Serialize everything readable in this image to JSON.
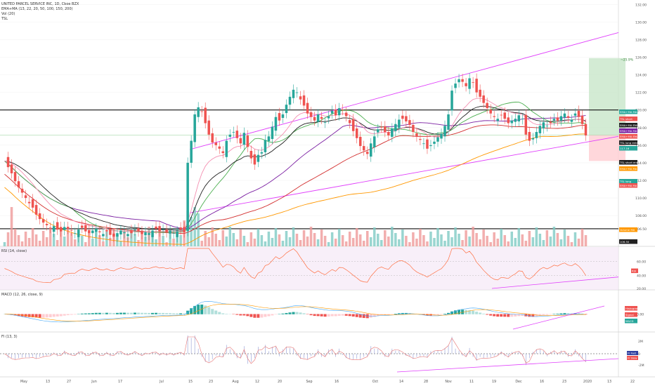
{
  "header": {
    "title": "UNITED PARCEL SERVICE INC, 1D, Cboe BZX",
    "ema_label": "EMA+MA (13, 22, 20, 50, 100, 150, 200)",
    "vol_label": "Vol (20)",
    "tsl_label": "TSL"
  },
  "pane_labels": {
    "rsi": "RSI (14, close)",
    "macd": "MACD (12, 26, close, 9)",
    "fi": "FI (13, 3)"
  },
  "colors": {
    "up": "#26a69a",
    "down": "#ef5350",
    "channel": "#e040fb",
    "ema13": "#f48fb1",
    "ema22": "#212121",
    "ma20": "#4caf50",
    "ma50": "#7b1fa2",
    "ma100": "#d32f2f",
    "ma150": "#ff9800"
  },
  "price_axis": [
    "132.00",
    "130.00",
    "128.00",
    "126.00",
    "124.00",
    "122.00",
    "120.00",
    "118.00",
    "116.00",
    "114.00",
    "112.00",
    "110.00",
    "108.00",
    "106.50"
  ],
  "price_tags": [
    {
      "text": "EMA+MA MA 2",
      "bg": "#26a69a"
    },
    {
      "text": "TSL short",
      "bg": "#ef5350"
    },
    {
      "text": "EMA+MA EMA 1",
      "bg": "#212121"
    },
    {
      "text": "EMA+MA MA 3",
      "bg": "#7b1fa2"
    },
    {
      "text": "EMA+MA EMA 2",
      "bg": "#ef5350"
    },
    {
      "text": "TSL long entry",
      "bg": "#212121"
    },
    {
      "text": "117.16",
      "bg": "#26a69a"
    },
    {
      "text": "TSL short entry",
      "bg": "#212121"
    },
    {
      "text": "EMA+MA MA 4",
      "bg": "#ff9800"
    },
    {
      "text": "TSL long",
      "bg": "#26a69a"
    },
    {
      "text": "EMA+MA MA 1",
      "bg": "#ef5350"
    },
    {
      "text": "Volume MA",
      "bg": "#ff9800"
    },
    {
      "text": "106.50",
      "bg": "#212121"
    }
  ],
  "target_label": "~25.9%",
  "rsi_tags": {
    "rsi": "RSI",
    "v60": "60.00",
    "v40": "40.00",
    "v20": "20.00"
  },
  "macd_tags": {
    "hist": "Histogram",
    "signal": "Signal",
    "macd": "MACD",
    "zero": "0.00"
  },
  "fi_tags": {
    "fi": "FI Fast",
    "slow": "FI Slow",
    "zero": "0",
    "pos": "2M",
    "neg": "-2M"
  },
  "time_axis": [
    "May",
    "13",
    "27",
    "Jun",
    "17",
    "Jul",
    "15",
    "23",
    "Aug",
    "12",
    "20",
    "Sep",
    "16",
    "Oct",
    "14",
    "28",
    "Nov",
    "11",
    "19",
    "Dec",
    "16",
    "23",
    "2020",
    "13",
    "22"
  ],
  "chart_data": {
    "type": "candlestick",
    "title": "UNITED PARCEL SERVICE INC, 1D, Cboe BZX",
    "ylim": [
      104.5,
      132.5
    ],
    "closes": [
      114.2,
      113.5,
      112.8,
      111.9,
      111.2,
      110.6,
      110.0,
      109.4,
      108.9,
      108.1,
      107.6,
      107.2,
      106.9,
      106.6,
      106.8,
      106.4,
      106.2,
      106.7,
      106.5,
      106.3,
      106.0,
      106.4,
      106.6,
      106.2,
      106.0,
      106.3,
      106.5,
      106.1,
      105.9,
      106.2,
      105.8,
      105.6,
      106.0,
      106.3,
      106.1,
      105.9,
      106.0,
      106.4,
      106.2,
      105.9,
      106.1,
      106.0,
      106.3,
      106.5,
      106.2,
      106.4,
      106.1,
      106.3,
      106.0,
      106.2,
      106.4,
      106.1,
      114.0,
      116.5,
      119.5,
      120.3,
      119.8,
      118.5,
      117.2,
      116.3,
      116.0,
      115.6,
      115.1,
      116.5,
      117.2,
      117.5,
      116.8,
      116.2,
      117.4,
      115.8,
      114.5,
      113.8,
      114.9,
      115.2,
      116.6,
      117.0,
      118.1,
      119.2,
      118.8,
      119.5,
      120.6,
      121.5,
      122.3,
      122.0,
      121.2,
      120.5,
      119.6,
      119.2,
      118.8,
      119.5,
      119.0,
      118.6,
      119.3,
      119.9,
      119.4,
      120.2,
      120.0,
      119.3,
      118.5,
      117.6,
      116.8,
      115.9,
      115.4,
      115.0,
      116.2,
      117.0,
      117.8,
      118.0,
      117.5,
      117.1,
      117.9,
      118.4,
      118.9,
      119.0,
      118.7,
      118.3,
      117.5,
      117.0,
      116.6,
      116.2,
      115.6,
      116.0,
      116.4,
      116.9,
      117.3,
      118.2,
      119.5,
      122.2,
      123.0,
      123.5,
      123.2,
      122.7,
      123.6,
      123.1,
      122.0,
      121.5,
      120.8,
      120.2,
      119.6,
      119.2,
      119.0,
      119.4,
      119.0,
      118.5,
      118.8,
      119.0,
      119.4,
      119.0,
      117.2,
      116.5,
      116.8,
      117.5,
      118.2,
      118.6,
      118.2,
      118.5,
      119.0,
      118.8,
      119.3,
      119.6,
      119.1,
      118.9,
      119.6,
      119.2,
      118.4,
      117.1
    ],
    "volume_last": 105.9,
    "target_zone": {
      "entry": 117.16,
      "upper": 125.9,
      "lower": 114.2
    },
    "channel_upper": [
      [
        1,
        115.5
      ],
      [
        0,
        128.8
      ]
    ],
    "channel_lower": [
      [
        1,
        108.3
      ],
      [
        0,
        117.0
      ]
    ],
    "levels": [
      120.0,
      106.5
    ],
    "rsi": {
      "ylim": [
        20,
        80
      ],
      "levels": [
        60,
        40
      ]
    },
    "macd": {
      "zero": 0
    },
    "fi": {
      "zero": 0
    }
  }
}
